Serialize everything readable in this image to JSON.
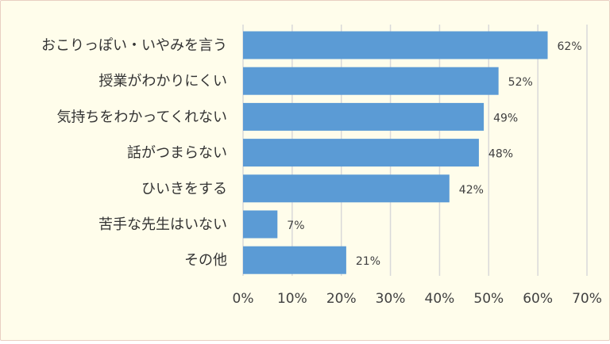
{
  "chart_data": {
    "type": "bar",
    "orientation": "horizontal",
    "categories": [
      "おこりっぽい・いやみを言う",
      "授業がわかりにくい",
      "気持ちをわかってくれない",
      "話がつまらない",
      "ひいきをする",
      "苦手な先生はいない",
      "その他"
    ],
    "values": [
      62,
      52,
      49,
      48,
      42,
      7,
      21
    ],
    "value_labels": [
      "62%",
      "52%",
      "49%",
      "48%",
      "42%",
      "7%",
      "21%"
    ],
    "x_ticks": [
      "0%",
      "10%",
      "20%",
      "30%",
      "40%",
      "50%",
      "60%",
      "70%"
    ],
    "xlim": [
      0,
      70
    ],
    "grid": true,
    "legend": "none",
    "colors": {
      "bar": "#5b9bd5",
      "background": "#fffdeb",
      "grid": "#d9d9d9",
      "border": "#e9cfc2"
    }
  }
}
